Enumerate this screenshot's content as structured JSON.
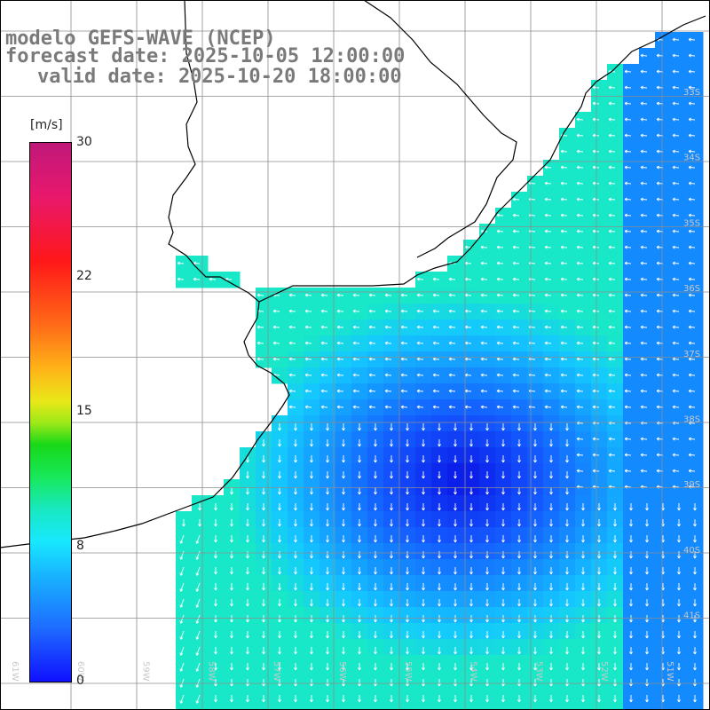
{
  "title": {
    "line1": "modelo GEFS-WAVE (NCEP)",
    "line2": "forecast date: 2025-10-05 12:00:00",
    "line3": "valid date: 2025-10-20 18:00:00"
  },
  "colorbar": {
    "unit": "[m/s]",
    "ticks": [
      {
        "label": "30",
        "value": 30
      },
      {
        "label": "22",
        "value": 22
      },
      {
        "label": "15",
        "value": 15
      },
      {
        "label": "8",
        "value": 8
      },
      {
        "label": "0",
        "value": 0
      }
    ]
  },
  "map": {
    "lat_labels": [
      "33S",
      "34S",
      "35S",
      "36S",
      "37S",
      "38S",
      "39S",
      "40S",
      "41S"
    ],
    "lon_labels": [
      "61W",
      "60W",
      "59W",
      "58W",
      "57W",
      "56W",
      "55W",
      "54W",
      "53W",
      "52W",
      "51W"
    ],
    "colors": {
      "land": "#ffffff",
      "calm": "#0a14e6",
      "moderate": "#18b0ff",
      "strong": "#18e0c8",
      "arrows": "#ffffff",
      "grid": "#8c8c8c",
      "coast": "#000000"
    }
  }
}
